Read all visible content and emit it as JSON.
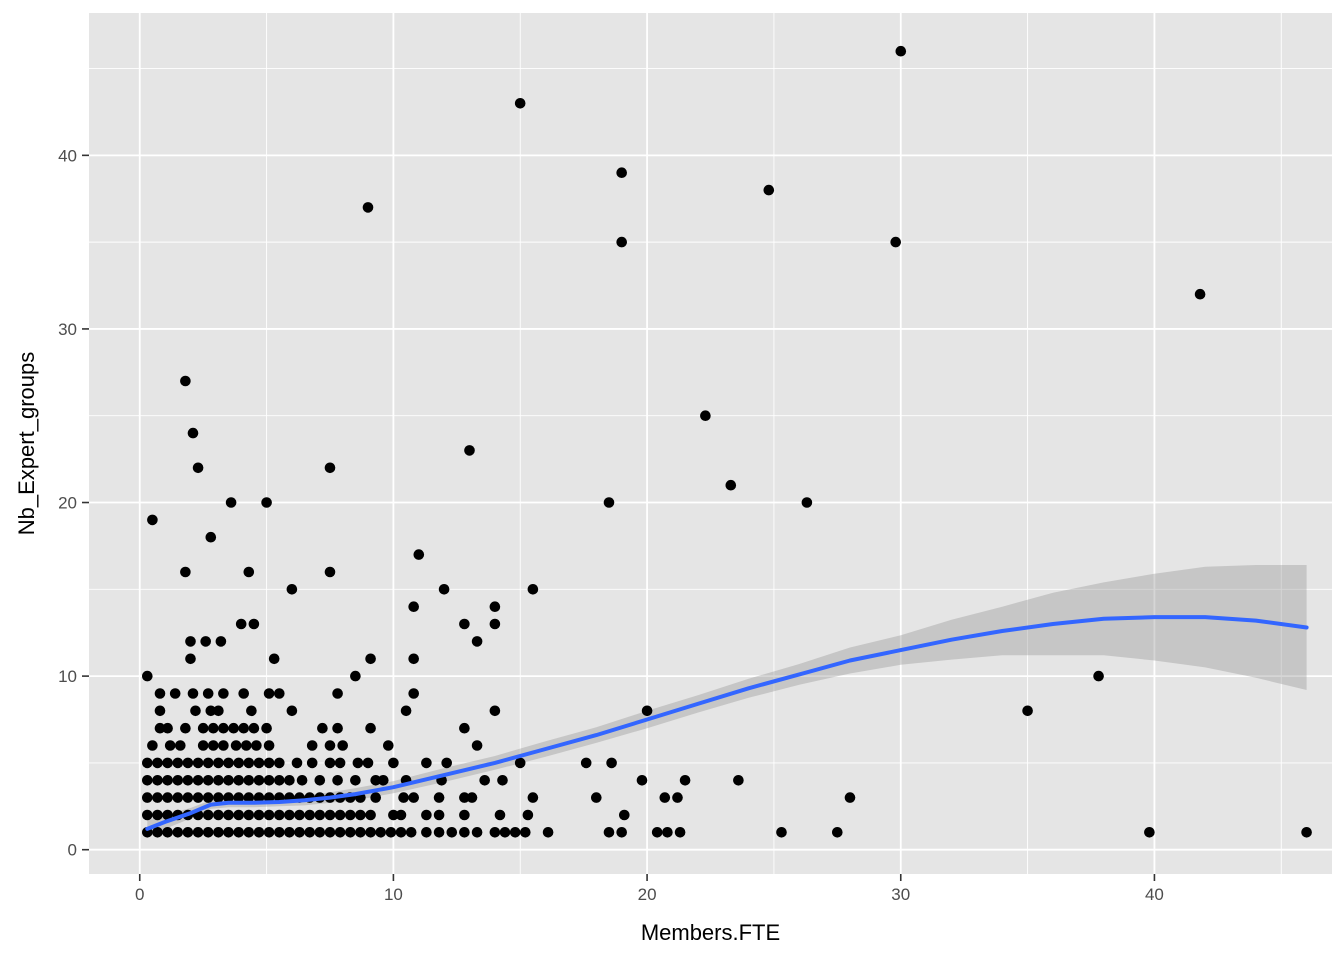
{
  "chart_data": {
    "type": "scatter",
    "xlabel": "Members.FTE",
    "ylabel": "Nb_Expert_groups",
    "xlim": [
      -2,
      47
    ],
    "ylim": [
      -1.4,
      48.2
    ],
    "x_ticks": [
      0,
      10,
      20,
      30,
      40
    ],
    "y_ticks": [
      0,
      10,
      20,
      30,
      40
    ],
    "x_minor": [
      5,
      15,
      25,
      35,
      45
    ],
    "y_minor": [
      5,
      15,
      25,
      35,
      45
    ],
    "grid": true,
    "colors": {
      "panel": "#e5e5e5",
      "grid": "#ffffff",
      "points": "#000000",
      "smooth_line": "#3366ff",
      "ribbon": "#999999"
    },
    "points": [
      [
        30,
        46
      ],
      [
        15,
        43
      ],
      [
        9,
        37
      ],
      [
        19,
        39
      ],
      [
        19,
        35
      ],
      [
        24.8,
        38
      ],
      [
        29.8,
        35
      ],
      [
        41.8,
        32
      ],
      [
        1.8,
        27
      ],
      [
        2.1,
        24
      ],
      [
        2.3,
        22
      ],
      [
        22.3,
        25
      ],
      [
        13,
        23
      ],
      [
        7.5,
        22
      ],
      [
        23.3,
        21
      ],
      [
        0.5,
        19
      ],
      [
        2.8,
        18
      ],
      [
        3.6,
        20
      ],
      [
        5,
        20
      ],
      [
        18.5,
        20
      ],
      [
        26.3,
        20
      ],
      [
        11,
        17
      ],
      [
        1.8,
        16
      ],
      [
        4.3,
        16
      ],
      [
        7.5,
        16
      ],
      [
        6,
        15
      ],
      [
        12,
        15
      ],
      [
        15.5,
        15
      ],
      [
        10.8,
        14
      ],
      [
        14,
        14
      ],
      [
        14,
        13
      ],
      [
        12.8,
        13
      ],
      [
        13.3,
        12
      ],
      [
        4,
        13
      ],
      [
        4.5,
        13
      ],
      [
        2,
        12
      ],
      [
        2.6,
        12
      ],
      [
        3.2,
        12
      ],
      [
        2,
        11
      ],
      [
        5.3,
        11
      ],
      [
        9.1,
        11
      ],
      [
        10.8,
        11
      ],
      [
        0.3,
        10
      ],
      [
        8.5,
        10
      ],
      [
        37.8,
        10
      ],
      [
        35,
        8
      ],
      [
        20,
        8
      ],
      [
        10.5,
        8
      ],
      [
        14,
        8
      ],
      [
        6,
        8
      ],
      [
        0.8,
        9
      ],
      [
        1.4,
        9
      ],
      [
        2.1,
        9
      ],
      [
        2.7,
        9
      ],
      [
        3.3,
        9
      ],
      [
        4.1,
        9
      ],
      [
        5.1,
        9
      ],
      [
        5.5,
        9
      ],
      [
        7.8,
        9
      ],
      [
        10.8,
        9
      ],
      [
        0.8,
        8
      ],
      [
        2.2,
        8
      ],
      [
        2.8,
        8
      ],
      [
        3.1,
        8
      ],
      [
        4.4,
        8
      ],
      [
        0.8,
        7
      ],
      [
        1.1,
        7
      ],
      [
        1.8,
        7
      ],
      [
        2.5,
        7
      ],
      [
        2.9,
        7
      ],
      [
        3.3,
        7
      ],
      [
        3.7,
        7
      ],
      [
        4.1,
        7
      ],
      [
        4.5,
        7
      ],
      [
        5,
        7
      ],
      [
        7.2,
        7
      ],
      [
        7.8,
        7
      ],
      [
        9.1,
        7
      ],
      [
        12.8,
        7
      ],
      [
        0.5,
        6
      ],
      [
        1.2,
        6
      ],
      [
        1.6,
        6
      ],
      [
        2.5,
        6
      ],
      [
        2.9,
        6
      ],
      [
        3.3,
        6
      ],
      [
        3.8,
        6
      ],
      [
        4.2,
        6
      ],
      [
        4.6,
        6
      ],
      [
        5.1,
        6
      ],
      [
        6.8,
        6
      ],
      [
        7.5,
        6
      ],
      [
        8,
        6
      ],
      [
        9.8,
        6
      ],
      [
        13.3,
        6
      ],
      [
        0.3,
        5
      ],
      [
        0.7,
        5
      ],
      [
        1.1,
        5
      ],
      [
        1.5,
        5
      ],
      [
        1.9,
        5
      ],
      [
        2.3,
        5
      ],
      [
        2.7,
        5
      ],
      [
        3.1,
        5
      ],
      [
        3.5,
        5
      ],
      [
        3.9,
        5
      ],
      [
        4.3,
        5
      ],
      [
        4.7,
        5
      ],
      [
        5.1,
        5
      ],
      [
        5.5,
        5
      ],
      [
        6.2,
        5
      ],
      [
        6.8,
        5
      ],
      [
        7.5,
        5
      ],
      [
        7.9,
        5
      ],
      [
        8.6,
        5
      ],
      [
        9,
        5
      ],
      [
        10,
        5
      ],
      [
        11.3,
        5
      ],
      [
        12.1,
        5
      ],
      [
        15,
        5
      ],
      [
        17.6,
        5
      ],
      [
        18.6,
        5
      ],
      [
        0.3,
        4
      ],
      [
        0.7,
        4
      ],
      [
        1.1,
        4
      ],
      [
        1.5,
        4
      ],
      [
        1.9,
        4
      ],
      [
        2.3,
        4
      ],
      [
        2.7,
        4
      ],
      [
        3.1,
        4
      ],
      [
        3.5,
        4
      ],
      [
        3.9,
        4
      ],
      [
        4.3,
        4
      ],
      [
        4.7,
        4
      ],
      [
        5.1,
        4
      ],
      [
        5.5,
        4
      ],
      [
        5.9,
        4
      ],
      [
        6.4,
        4
      ],
      [
        7.1,
        4
      ],
      [
        7.8,
        4
      ],
      [
        8.5,
        4
      ],
      [
        9.3,
        4
      ],
      [
        9.6,
        4
      ],
      [
        10.5,
        4
      ],
      [
        11.9,
        4
      ],
      [
        13.6,
        4
      ],
      [
        14.3,
        4
      ],
      [
        19.8,
        4
      ],
      [
        21.5,
        4
      ],
      [
        23.6,
        4
      ],
      [
        0.3,
        3
      ],
      [
        0.7,
        3
      ],
      [
        1.1,
        3
      ],
      [
        1.5,
        3
      ],
      [
        1.9,
        3
      ],
      [
        2.3,
        3
      ],
      [
        2.7,
        3
      ],
      [
        3.1,
        3
      ],
      [
        3.5,
        3
      ],
      [
        3.9,
        3
      ],
      [
        4.3,
        3
      ],
      [
        4.7,
        3
      ],
      [
        5.1,
        3
      ],
      [
        5.5,
        3
      ],
      [
        5.9,
        3
      ],
      [
        6.3,
        3
      ],
      [
        6.7,
        3
      ],
      [
        7.1,
        3
      ],
      [
        7.5,
        3
      ],
      [
        7.9,
        3
      ],
      [
        8.3,
        3
      ],
      [
        8.7,
        3
      ],
      [
        9.3,
        3
      ],
      [
        10.4,
        3
      ],
      [
        10.8,
        3
      ],
      [
        11.8,
        3
      ],
      [
        12.8,
        3
      ],
      [
        13.1,
        3
      ],
      [
        15.5,
        3
      ],
      [
        18,
        3
      ],
      [
        20.7,
        3
      ],
      [
        21.2,
        3
      ],
      [
        28,
        3
      ],
      [
        0.3,
        2
      ],
      [
        0.7,
        2
      ],
      [
        1.1,
        2
      ],
      [
        1.5,
        2
      ],
      [
        1.9,
        2
      ],
      [
        2.3,
        2
      ],
      [
        2.7,
        2
      ],
      [
        3.1,
        2
      ],
      [
        3.5,
        2
      ],
      [
        3.9,
        2
      ],
      [
        4.3,
        2
      ],
      [
        4.7,
        2
      ],
      [
        5.1,
        2
      ],
      [
        5.5,
        2
      ],
      [
        5.9,
        2
      ],
      [
        6.3,
        2
      ],
      [
        6.7,
        2
      ],
      [
        7.1,
        2
      ],
      [
        7.5,
        2
      ],
      [
        7.9,
        2
      ],
      [
        8.3,
        2
      ],
      [
        8.7,
        2
      ],
      [
        9.1,
        2
      ],
      [
        10,
        2
      ],
      [
        10.3,
        2
      ],
      [
        11.3,
        2
      ],
      [
        11.8,
        2
      ],
      [
        12.8,
        2
      ],
      [
        14.2,
        2
      ],
      [
        15.3,
        2
      ],
      [
        19.1,
        2
      ],
      [
        0.3,
        1
      ],
      [
        0.7,
        1
      ],
      [
        1.1,
        1
      ],
      [
        1.5,
        1
      ],
      [
        1.9,
        1
      ],
      [
        2.3,
        1
      ],
      [
        2.7,
        1
      ],
      [
        3.1,
        1
      ],
      [
        3.5,
        1
      ],
      [
        3.9,
        1
      ],
      [
        4.3,
        1
      ],
      [
        4.7,
        1
      ],
      [
        5.1,
        1
      ],
      [
        5.5,
        1
      ],
      [
        5.9,
        1
      ],
      [
        6.3,
        1
      ],
      [
        6.7,
        1
      ],
      [
        7.1,
        1
      ],
      [
        7.5,
        1
      ],
      [
        7.9,
        1
      ],
      [
        8.3,
        1
      ],
      [
        8.7,
        1
      ],
      [
        9.1,
        1
      ],
      [
        9.5,
        1
      ],
      [
        9.9,
        1
      ],
      [
        10.3,
        1
      ],
      [
        10.7,
        1
      ],
      [
        11.3,
        1
      ],
      [
        11.8,
        1
      ],
      [
        12.3,
        1
      ],
      [
        12.8,
        1
      ],
      [
        13.3,
        1
      ],
      [
        14,
        1
      ],
      [
        14.4,
        1
      ],
      [
        14.8,
        1
      ],
      [
        15.2,
        1
      ],
      [
        16.1,
        1
      ],
      [
        18.5,
        1
      ],
      [
        19,
        1
      ],
      [
        20.4,
        1
      ],
      [
        20.8,
        1
      ],
      [
        21.3,
        1
      ],
      [
        25.3,
        1
      ],
      [
        27.5,
        1
      ],
      [
        39.8,
        1
      ],
      [
        46,
        1
      ]
    ],
    "smooth": {
      "x": [
        0.3,
        1,
        2,
        2.8,
        3.5,
        4.5,
        5.5,
        6.5,
        7.5,
        8.5,
        10,
        12,
        14,
        16,
        18,
        20,
        22,
        24,
        26,
        28,
        30,
        32,
        34,
        36,
        38,
        40,
        42,
        44,
        46
      ],
      "y": [
        1.2,
        1.6,
        2.1,
        2.6,
        2.7,
        2.7,
        2.75,
        2.85,
        3.0,
        3.2,
        3.6,
        4.3,
        5.0,
        5.8,
        6.6,
        7.5,
        8.4,
        9.3,
        10.1,
        10.9,
        11.5,
        12.1,
        12.6,
        13.0,
        13.3,
        13.4,
        13.4,
        13.2,
        12.8
      ],
      "ymin": [
        0.7,
        1.2,
        1.8,
        2.35,
        2.45,
        2.45,
        2.5,
        2.55,
        2.7,
        2.85,
        3.25,
        3.9,
        4.6,
        5.35,
        6.15,
        7.0,
        7.9,
        8.75,
        9.5,
        10.15,
        10.65,
        10.95,
        11.2,
        11.2,
        11.2,
        10.9,
        10.5,
        9.9,
        9.2
      ],
      "ymax": [
        1.7,
        2.0,
        2.4,
        2.85,
        2.95,
        2.95,
        3.0,
        3.15,
        3.3,
        3.55,
        3.95,
        4.7,
        5.4,
        6.25,
        7.05,
        8.0,
        8.9,
        9.85,
        10.7,
        11.65,
        12.35,
        13.25,
        14.0,
        14.8,
        15.4,
        15.9,
        16.3,
        16.4,
        16.4
      ]
    }
  }
}
